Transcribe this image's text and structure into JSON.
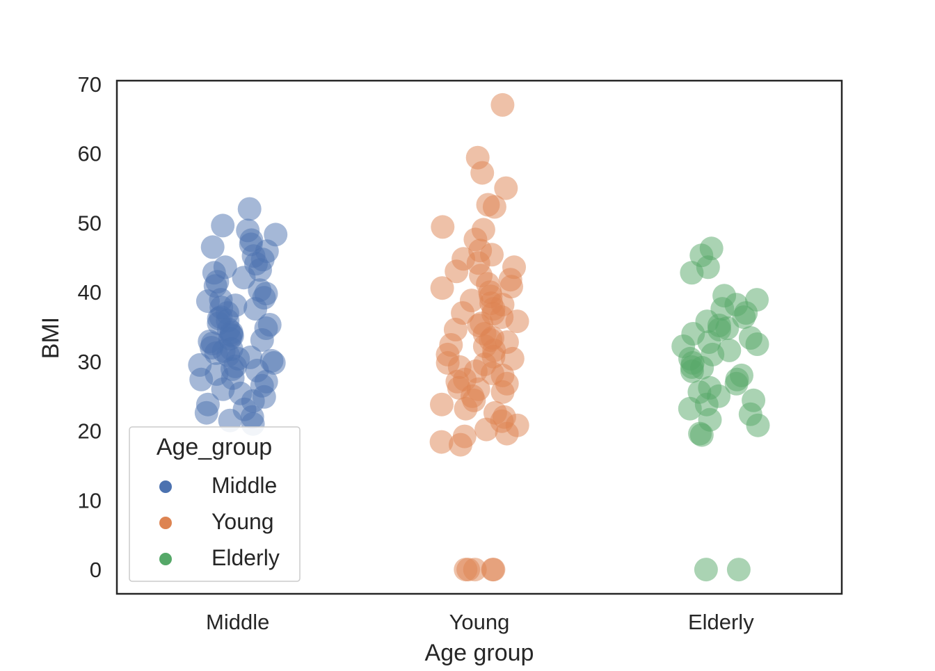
{
  "chart_data": {
    "type": "scatter",
    "subtype": "stripplot",
    "title": "",
    "xlabel": "Age group",
    "ylabel": "BMI",
    "categories": [
      "Middle",
      "Young",
      "Elderly"
    ],
    "ylim": [
      -3.5,
      70.5
    ],
    "yticks": [
      0,
      10,
      20,
      30,
      40,
      50,
      60,
      70
    ],
    "grid": false,
    "legend": {
      "title": "Age_group",
      "placement": "lower-left",
      "entries": [
        "Middle",
        "Young",
        "Elderly"
      ]
    },
    "series": [
      {
        "name": "Middle",
        "color": "#4c72b0",
        "category": "Middle",
        "values": [
          52.0,
          49.6,
          48.9,
          48.3,
          47.5,
          46.9,
          46.5,
          45.9,
          45.2,
          44.7,
          44.1,
          43.6,
          43.2,
          42.8,
          42.1,
          41.5,
          40.9,
          40.3,
          39.8,
          39.2,
          38.7,
          38.1,
          37.6,
          37.0,
          36.4,
          35.9,
          35.3,
          34.8,
          34.2,
          33.7,
          33.1,
          32.6,
          32.0,
          31.5,
          30.9,
          30.4,
          29.8,
          29.3,
          28.7,
          28.2,
          27.6,
          27.1,
          26.5,
          26.0,
          25.4,
          24.9,
          24.3,
          23.8,
          23.1,
          22.6,
          22.0,
          21.5,
          21.0,
          36.2,
          34.6,
          33.3,
          31.8,
          30.1,
          28.9,
          27.4,
          35.5,
          32.9,
          30.6,
          29.5,
          37.8,
          38.9,
          33.9,
          31.2
        ]
      },
      {
        "name": "Young",
        "color": "#dd8452",
        "category": "Young",
        "values": [
          67.0,
          59.4,
          57.2,
          55.0,
          52.6,
          52.3,
          49.4,
          49.0,
          47.6,
          46.0,
          45.4,
          44.8,
          44.2,
          43.6,
          43.0,
          42.4,
          41.8,
          41.2,
          40.6,
          40.0,
          39.4,
          38.8,
          38.2,
          37.6,
          37.0,
          36.4,
          35.8,
          35.2,
          34.6,
          34.0,
          33.4,
          32.8,
          32.2,
          31.6,
          31.0,
          30.4,
          29.8,
          29.2,
          28.6,
          28.0,
          27.4,
          26.8,
          26.2,
          25.6,
          25.0,
          24.4,
          23.8,
          23.2,
          22.6,
          22.0,
          21.4,
          20.8,
          20.2,
          19.6,
          19.2,
          18.4,
          18.0,
          35.5,
          33.1,
          30.7,
          28.3,
          26.0,
          38.4,
          40.8,
          36.9,
          32.4,
          29.6,
          27.1,
          0.0,
          0.0,
          0.0,
          0.0,
          0.0
        ]
      },
      {
        "name": "Elderly",
        "color": "#55a868",
        "category": "Elderly",
        "values": [
          46.3,
          45.3,
          43.6,
          42.8,
          39.5,
          38.9,
          38.2,
          37.6,
          37.0,
          36.4,
          35.8,
          35.2,
          34.6,
          34.0,
          33.4,
          32.8,
          32.2,
          31.6,
          31.0,
          30.4,
          29.8,
          29.2,
          28.6,
          28.0,
          27.4,
          26.8,
          26.2,
          25.6,
          25.0,
          24.4,
          23.8,
          23.2,
          22.4,
          21.6,
          20.8,
          19.6,
          19.4,
          34.8,
          32.5,
          29.1,
          0.0,
          0.0
        ]
      }
    ]
  }
}
